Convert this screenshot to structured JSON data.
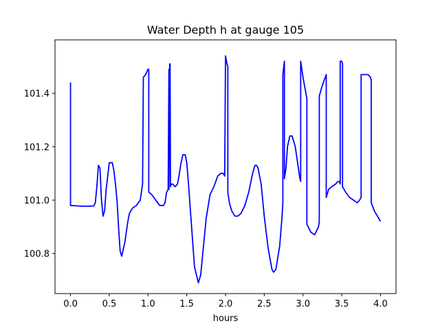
{
  "chart_data": {
    "type": "line",
    "title": "Water Depth h at gauge 105",
    "xlabel": "hours",
    "ylabel": "",
    "xlim": [
      -0.2,
      4.2
    ],
    "ylim": [
      100.65,
      101.6
    ],
    "xticks": [
      0.0,
      0.5,
      1.0,
      1.5,
      2.0,
      2.5,
      3.0,
      3.5,
      4.0
    ],
    "xtick_labels": [
      "0.0",
      "0.5",
      "1.0",
      "1.5",
      "2.0",
      "2.5",
      "3.0",
      "3.5",
      "4.0"
    ],
    "yticks": [
      100.8,
      101.0,
      101.2,
      101.4
    ],
    "ytick_labels": [
      "100.8",
      "101.0",
      "101.2",
      "101.4"
    ],
    "grid": false,
    "series": [
      {
        "color": "#0000ff",
        "x": [
          0.0,
          0.0,
          0.0,
          0.1,
          0.2,
          0.3,
          0.32,
          0.34,
          0.36,
          0.38,
          0.4,
          0.42,
          0.44,
          0.46,
          0.5,
          0.54,
          0.56,
          0.58,
          0.6,
          0.62,
          0.64,
          0.66,
          0.7,
          0.74,
          0.76,
          0.8,
          0.85,
          0.9,
          0.93,
          0.94,
          0.94,
          0.97,
          1.0,
          1.01,
          1.01,
          1.05,
          1.1,
          1.15,
          1.2,
          1.22,
          1.24,
          1.26,
          1.27,
          1.27,
          1.28,
          1.285,
          1.29,
          1.3,
          1.32,
          1.35,
          1.38,
          1.4,
          1.42,
          1.45,
          1.48,
          1.5,
          1.52,
          1.55,
          1.6,
          1.65,
          1.68,
          1.7,
          1.75,
          1.8,
          1.85,
          1.9,
          1.94,
          1.97,
          1.99,
          2.0,
          2.0,
          2.02,
          2.03,
          2.03,
          2.05,
          2.08,
          2.12,
          2.16,
          2.2,
          2.25,
          2.3,
          2.35,
          2.38,
          2.4,
          2.42,
          2.46,
          2.5,
          2.55,
          2.6,
          2.62,
          2.65,
          2.7,
          2.73,
          2.74,
          2.74,
          2.76,
          2.76,
          2.78,
          2.8,
          2.83,
          2.86,
          2.9,
          2.93,
          2.96,
          2.97,
          2.97,
          3.0,
          3.05,
          3.05,
          3.1,
          3.15,
          3.2,
          3.21,
          3.21,
          3.25,
          3.3,
          3.3,
          3.33,
          3.37,
          3.42,
          3.45,
          3.47,
          3.48,
          3.48,
          3.5,
          3.51,
          3.51,
          3.55,
          3.6,
          3.65,
          3.7,
          3.73,
          3.75,
          3.75,
          3.8,
          3.84,
          3.87,
          3.88,
          3.88,
          3.92,
          3.96,
          4.0
        ],
        "y": [
          101.44,
          100.98,
          100.98,
          100.978,
          100.977,
          100.978,
          100.99,
          101.05,
          101.13,
          101.12,
          101.0,
          100.94,
          100.96,
          101.04,
          101.14,
          101.14,
          101.11,
          101.06,
          101.0,
          100.9,
          100.81,
          100.79,
          100.84,
          100.92,
          100.95,
          100.97,
          100.98,
          101.0,
          101.06,
          101.46,
          101.46,
          101.47,
          101.49,
          101.49,
          101.03,
          101.02,
          101.0,
          100.98,
          100.98,
          100.99,
          101.03,
          101.04,
          101.49,
          101.04,
          101.51,
          101.51,
          101.05,
          101.06,
          101.06,
          101.05,
          101.06,
          101.09,
          101.13,
          101.17,
          101.17,
          101.14,
          101.07,
          100.95,
          100.75,
          100.69,
          100.72,
          100.78,
          100.93,
          101.02,
          101.05,
          101.09,
          101.1,
          101.1,
          101.09,
          101.54,
          101.54,
          101.51,
          101.5,
          101.03,
          100.99,
          100.96,
          100.94,
          100.94,
          100.95,
          100.98,
          101.03,
          101.1,
          101.13,
          101.13,
          101.12,
          101.06,
          100.94,
          100.82,
          100.74,
          100.73,
          100.74,
          100.83,
          100.94,
          100.99,
          101.47,
          101.52,
          101.08,
          101.12,
          101.2,
          101.24,
          101.24,
          101.2,
          101.14,
          101.08,
          101.07,
          101.52,
          101.46,
          101.38,
          100.91,
          100.88,
          100.87,
          100.9,
          100.92,
          101.39,
          101.43,
          101.47,
          101.01,
          101.04,
          101.05,
          101.06,
          101.07,
          101.07,
          101.06,
          101.52,
          101.52,
          101.51,
          101.05,
          101.03,
          101.01,
          101.0,
          100.99,
          101.0,
          101.01,
          101.47,
          101.47,
          101.47,
          101.46,
          101.45,
          100.99,
          100.96,
          100.94,
          100.92
        ]
      }
    ]
  }
}
